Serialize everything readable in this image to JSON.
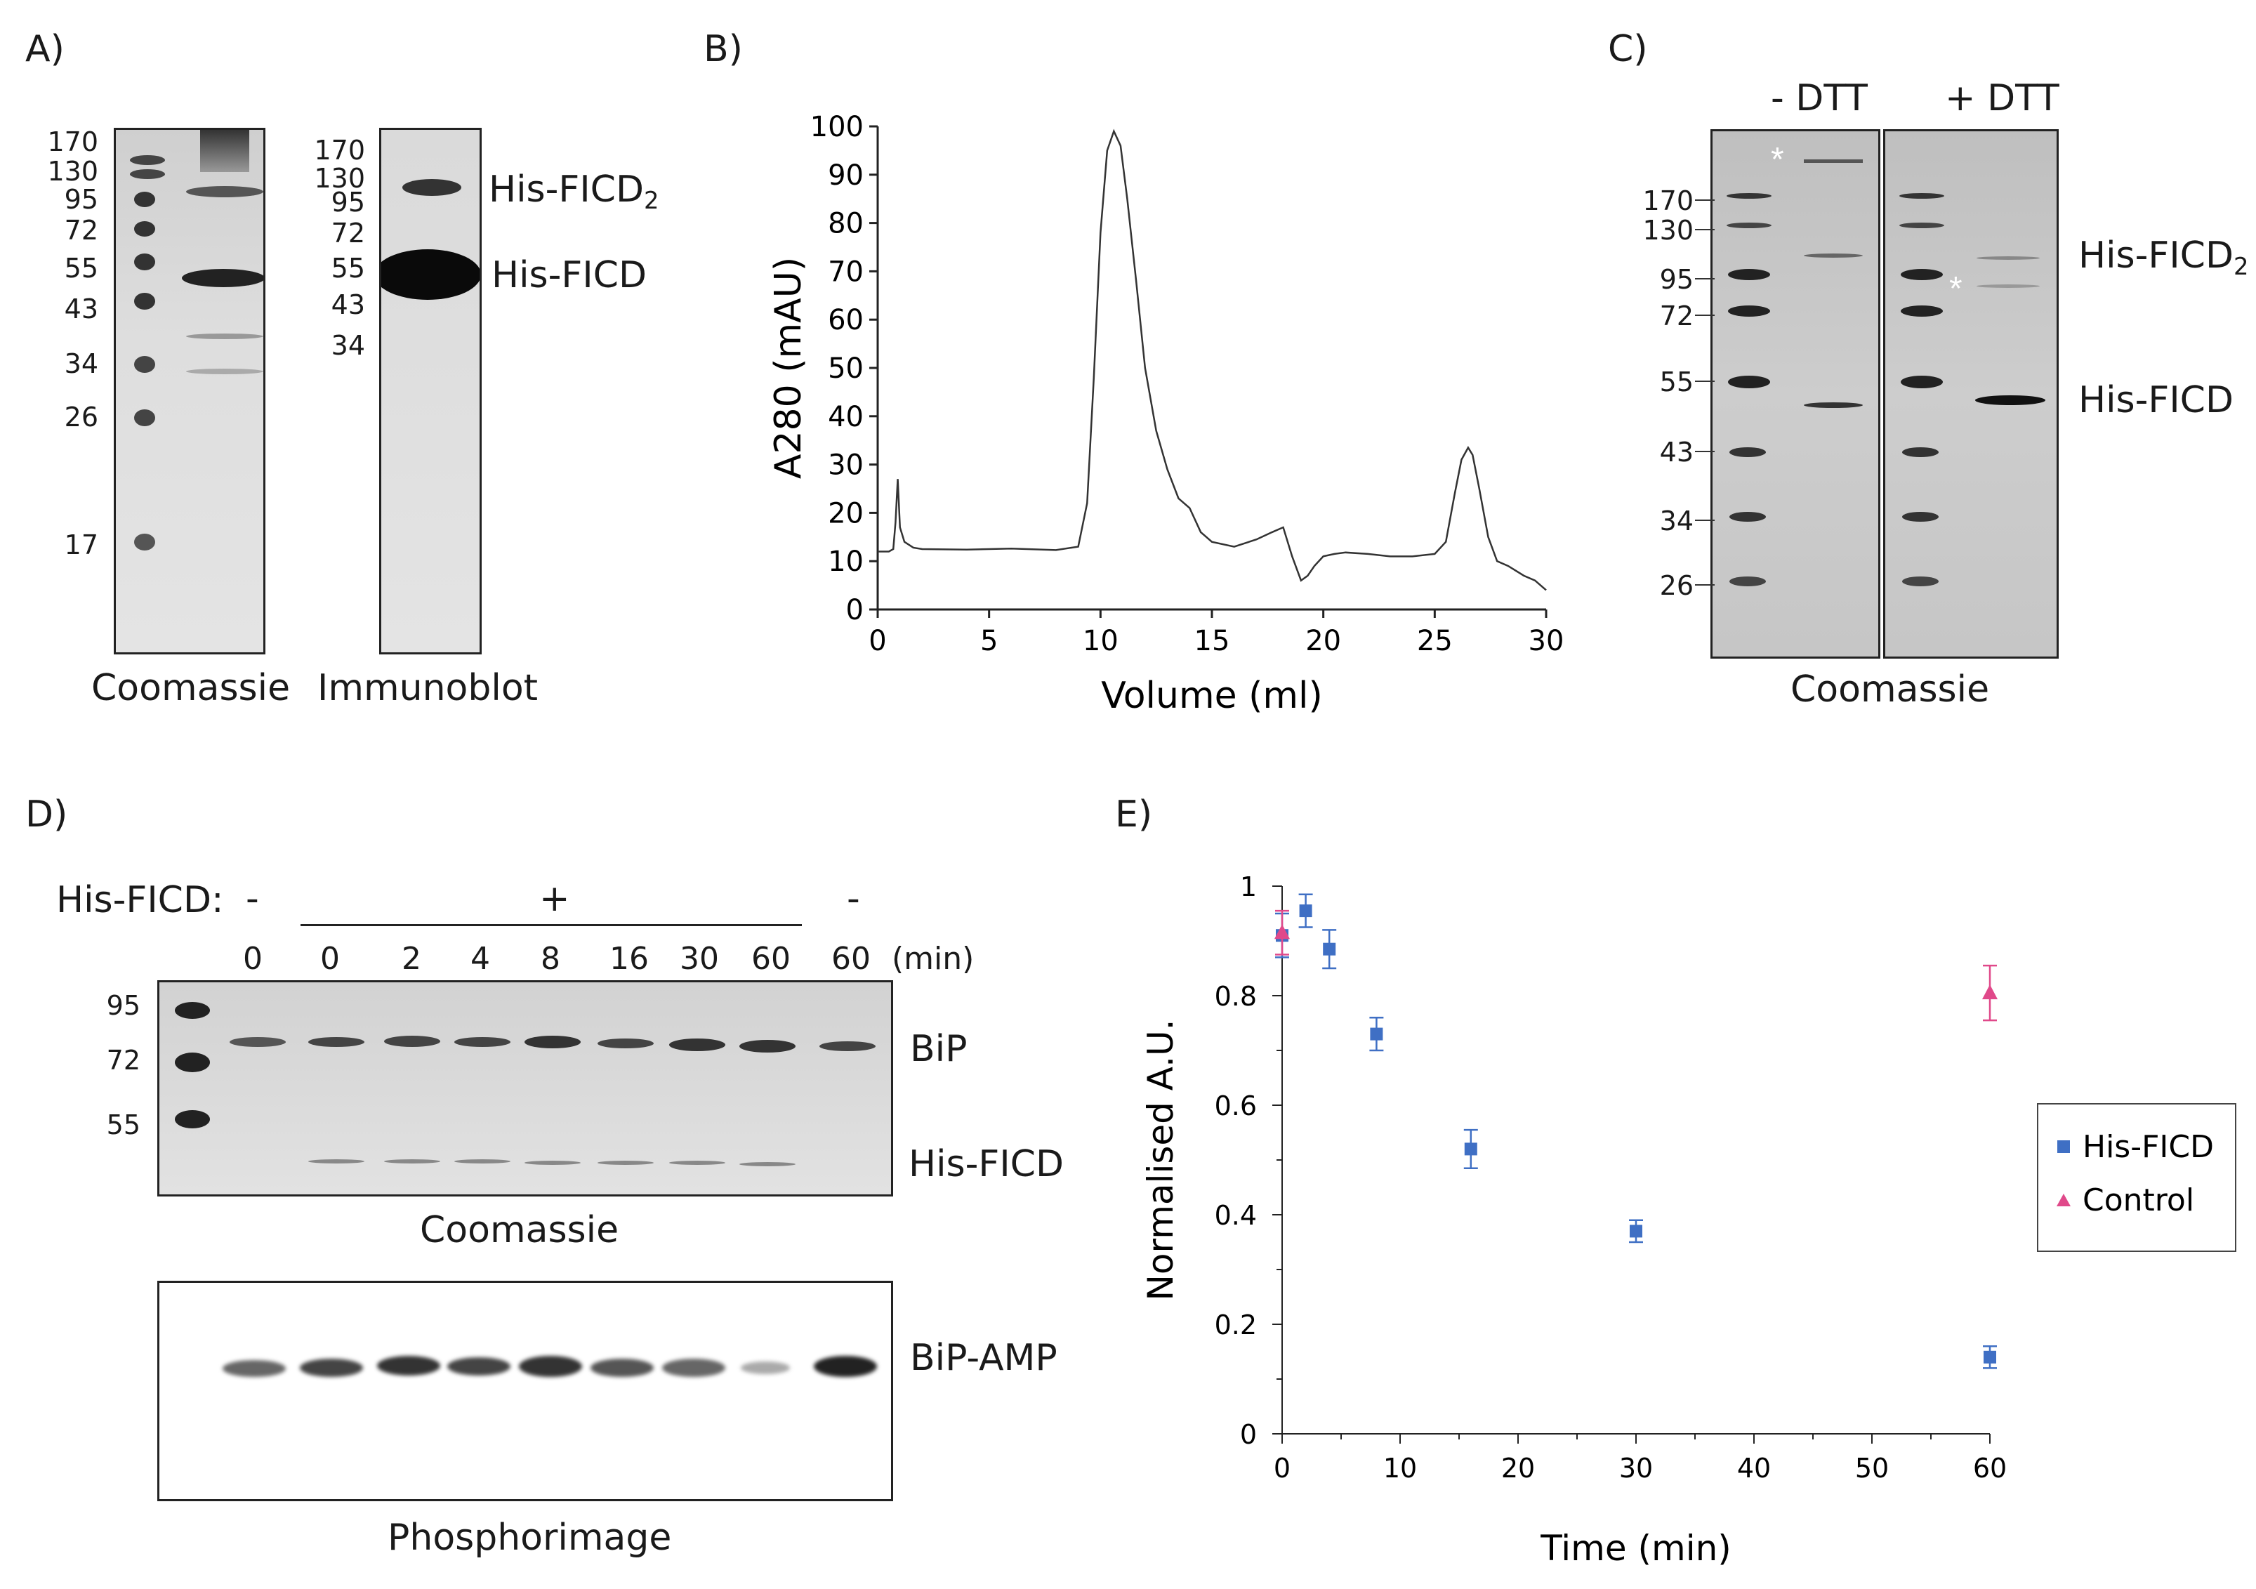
{
  "panels": {
    "A": {
      "letter": "A)",
      "coomassie_label": "Coomassie",
      "immunoblot_label": "Immunoblot",
      "coomassie_markers": [
        "170",
        "130",
        "95",
        "72",
        "55",
        "43",
        "34",
        "26",
        "17"
      ],
      "immunoblot_markers": [
        "170",
        "130",
        "95",
        "72",
        "55",
        "43",
        "34"
      ],
      "band_labels": {
        "dimer": "His-FICD",
        "dimer_sub": "2",
        "monomer": "His-FICD"
      }
    },
    "B": {
      "letter": "B)",
      "chart_data": {
        "type": "line",
        "title": "",
        "xlabel": "Volume (ml)",
        "ylabel": "A280 (mAU)",
        "xlim": [
          0,
          30
        ],
        "ylim": [
          0,
          100
        ],
        "xticks": [
          0,
          5,
          10,
          15,
          20,
          25,
          30
        ],
        "yticks": [
          0,
          10,
          20,
          30,
          40,
          50,
          60,
          70,
          80,
          90,
          100
        ],
        "series": [
          {
            "name": "A280",
            "x": [
              0,
              0.5,
              0.7,
              0.8,
              0.9,
              1.0,
              1.2,
              1.6,
              2,
              4,
              6,
              8,
              9,
              9.4,
              9.7,
              10,
              10.3,
              10.6,
              10.9,
              11.2,
              11.6,
              12,
              12.5,
              13,
              13.5,
              14,
              14.5,
              15,
              16,
              17,
              17.7,
              18.2,
              18.6,
              19,
              19.3,
              19.6,
              20,
              20.5,
              21,
              22,
              23,
              24,
              25,
              25.5,
              25.9,
              26.2,
              26.5,
              26.7,
              27,
              27.4,
              27.8,
              28.3,
              29,
              29.5,
              30
            ],
            "y": [
              12,
              12,
              12.5,
              18,
              27,
              17,
              14,
              12.8,
              12.5,
              12.4,
              12.6,
              12.3,
              13,
              22,
              48,
              78,
              95,
              99,
              96,
              85,
              68,
              50,
              37,
              29,
              23,
              21,
              16,
              14,
              13,
              14.5,
              16,
              17,
              11,
              6,
              7,
              9,
              11,
              11.5,
              11.8,
              11.5,
              11,
              11,
              11.5,
              14,
              24,
              31,
              33.5,
              32,
              25,
              15,
              10,
              9,
              7,
              6,
              4
            ]
          }
        ]
      }
    },
    "C": {
      "letter": "C)",
      "lane_labels": [
        "- DTT",
        "+ DTT"
      ],
      "markers": [
        "170",
        "130",
        "95",
        "72",
        "55",
        "43",
        "34",
        "26"
      ],
      "asterisk": "*",
      "band_labels": {
        "dimer": "His-FICD",
        "dimer_sub": "2",
        "monomer": "His-FICD"
      },
      "coomassie_label": "Coomassie"
    },
    "D": {
      "letter": "D)",
      "his_label": "His-FICD:",
      "signs": [
        "-",
        "+",
        "-"
      ],
      "times": [
        "0",
        "0",
        "2",
        "4",
        "8",
        "16",
        "30",
        "60",
        "60"
      ],
      "time_unit": "(min)",
      "markers": [
        "95",
        "72",
        "55"
      ],
      "band_labels": {
        "bip": "BiP",
        "his": "His-FICD",
        "bipamp": "BiP-AMP"
      },
      "coomassie_label": "Coomassie",
      "phosphor_label": "Phosphorimage"
    },
    "E": {
      "letter": "E)",
      "chart_data": {
        "type": "scatter",
        "title": "",
        "xlabel": "Time (min)",
        "ylabel": "Normalised A.U.",
        "xlim": [
          0,
          60
        ],
        "ylim": [
          0,
          1
        ],
        "xticks": [
          0,
          10,
          20,
          30,
          40,
          50,
          60
        ],
        "yticks": [
          0,
          0.2,
          0.4,
          0.6,
          0.8,
          1
        ],
        "ytick_labels": [
          "0",
          "0.2",
          "0.4",
          "0.6",
          "0.8",
          "1"
        ],
        "legend_position": "right",
        "series": [
          {
            "name": "His-FICD",
            "marker": "square",
            "color": "#3f6fc4",
            "x": [
              0,
              2,
              4,
              8,
              16,
              30,
              60
            ],
            "y": [
              0.91,
              0.955,
              0.885,
              0.73,
              0.52,
              0.37,
              0.14
            ],
            "err": [
              0.04,
              0.03,
              0.035,
              0.03,
              0.035,
              0.02,
              0.02
            ]
          },
          {
            "name": "Control",
            "marker": "triangle",
            "color": "#e0498a",
            "x": [
              0,
              60
            ],
            "y": [
              0.915,
              0.805
            ],
            "err": [
              0.04,
              0.05
            ]
          }
        ]
      }
    }
  }
}
